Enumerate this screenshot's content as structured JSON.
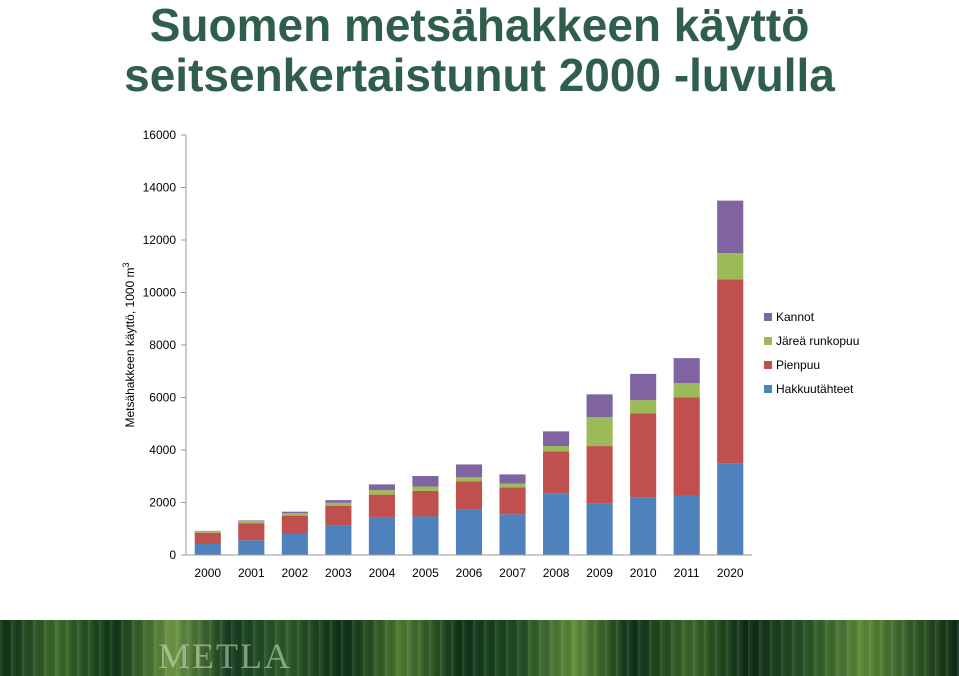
{
  "slide": {
    "title_line1": "Suomen metsähakkeen käyttö",
    "title_line2": "seitsenkertaistunut 2000 -luvulla",
    "footer_logo": "METLA"
  },
  "chart_data": {
    "type": "bar",
    "stacked": true,
    "ylabel_main": "Metsähakkeen käyttö, 1000 m",
    "ylabel_sup": "3",
    "ylim": [
      0,
      16000
    ],
    "yticks": [
      0,
      2000,
      4000,
      6000,
      8000,
      10000,
      12000,
      14000,
      16000
    ],
    "grid": false,
    "legend_position": "right",
    "categories": [
      "2000",
      "2001",
      "2002",
      "2003",
      "2004",
      "2005",
      "2006",
      "2007",
      "2008",
      "2009",
      "2010",
      "2011",
      "2020"
    ],
    "series": [
      {
        "name": "Hakkuutähteet",
        "color": "#4f81bd",
        "values": [
          420,
          560,
          800,
          1110,
          1450,
          1470,
          1730,
          1550,
          2350,
          1950,
          2200,
          2250,
          3500
        ]
      },
      {
        "name": "Pienpuu",
        "color": "#c0504d",
        "values": [
          430,
          640,
          700,
          770,
          850,
          970,
          1070,
          1020,
          1600,
          2200,
          3200,
          3750,
          7000
        ]
      },
      {
        "name": "Järeä runkopuu",
        "color": "#9bbb59",
        "values": [
          60,
          100,
          100,
          110,
          170,
          170,
          170,
          150,
          200,
          1100,
          500,
          550,
          1000
        ]
      },
      {
        "name": "Kannot",
        "color": "#8064a2",
        "values": [
          10,
          20,
          50,
          100,
          220,
          400,
          480,
          350,
          560,
          870,
          1000,
          950,
          2000
        ]
      }
    ]
  }
}
